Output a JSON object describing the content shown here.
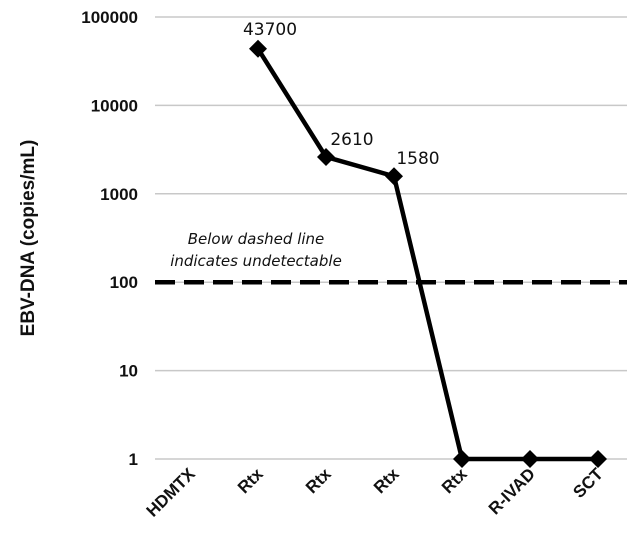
{
  "chart_data": {
    "type": "line",
    "scale_y": "log",
    "ylabel": "EBV-DNA (copies/mL)",
    "ylim": [
      1,
      100000
    ],
    "y_ticks": [
      "1",
      "10",
      "100",
      "1000",
      "10000",
      "100000"
    ],
    "categories": [
      "HDMTX",
      "Rtx",
      "Rtx",
      "Rtx",
      "Rtx",
      "R-IVAD",
      "SCT"
    ],
    "series": [
      {
        "points": [
          {
            "x": 1,
            "y": 43700
          },
          {
            "x": 2,
            "y": 2610
          },
          {
            "x": 3,
            "y": 1580
          },
          {
            "x": 4,
            "y": 1
          },
          {
            "x": 5,
            "y": 1
          },
          {
            "x": 6,
            "y": 1
          }
        ]
      }
    ],
    "data_labels": [
      "43700",
      "2610",
      "1580"
    ],
    "threshold": {
      "y": 100,
      "style": "dashed"
    },
    "annotation": "Below dashed line indicates undetectable",
    "annotation_lines": [
      "Below dashed line",
      "indicates undetectable"
    ],
    "grid": true,
    "colors": {
      "line": "#000000",
      "grid": "#c8c8c8",
      "threshold": "#000000"
    }
  }
}
